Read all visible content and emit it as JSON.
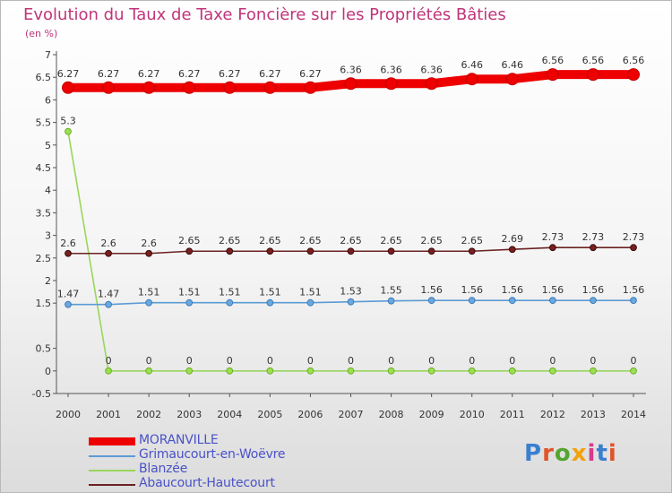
{
  "title": "Evolution du Taux de Taxe Foncière sur les Propriétés Bâties",
  "unit": "(en %)",
  "logo": "Proxiti",
  "chart_data": {
    "type": "line",
    "title": "Evolution du Taux de Taxe Foncière sur les Propriétés Bâties",
    "ylabel": "(en %)",
    "xlabel": "",
    "ylim": [
      -0.5,
      7
    ],
    "yticks": [
      -0.5,
      0,
      0.5,
      1.5,
      2,
      2.5,
      3,
      3.5,
      4,
      4.5,
      5,
      5.5,
      6,
      6.5,
      7
    ],
    "grid": false,
    "legend_position": "bottom-left",
    "categories": [
      "2000",
      "2001",
      "2002",
      "2003",
      "2004",
      "2005",
      "2006",
      "2007",
      "2008",
      "2009",
      "2010",
      "2011",
      "2012",
      "2013",
      "2014"
    ],
    "series": [
      {
        "name": "MORANVILLE",
        "color": "#ee0000",
        "values": [
          6.27,
          6.27,
          6.27,
          6.27,
          6.27,
          6.27,
          6.27,
          6.36,
          6.36,
          6.36,
          6.46,
          6.46,
          6.56,
          6.56,
          6.56
        ],
        "labels": [
          "6.27",
          "6.27",
          "6.27",
          "6.27",
          "6.27",
          "6.27",
          "6.27",
          "6.36",
          "6.36",
          "6.36",
          "6.46",
          "6.46",
          "6.56",
          "6.56",
          "6.56"
        ]
      },
      {
        "name": "Grimaucourt-en-Woëvre",
        "color": "#5b9bd5",
        "values": [
          1.47,
          1.47,
          1.51,
          1.51,
          1.51,
          1.51,
          1.51,
          1.53,
          1.55,
          1.56,
          1.56,
          1.56,
          1.56,
          1.56,
          1.56
        ],
        "labels": [
          "1.47",
          "1.47",
          "1.51",
          "1.51",
          "1.51",
          "1.51",
          "1.51",
          "1.53",
          "1.55",
          "1.56",
          "1.56",
          "1.56",
          "1.56",
          "1.56",
          "1.56"
        ]
      },
      {
        "name": "Blanzée",
        "color": "#99d65c",
        "values": [
          5.3,
          0,
          0,
          0,
          0,
          0,
          0,
          0,
          0,
          0,
          0,
          0,
          0,
          0,
          0
        ],
        "labels": [
          "5.3",
          "0",
          "0",
          "0",
          "0",
          "0",
          "0",
          "0",
          "0",
          "0",
          "0",
          "0",
          "0",
          "0",
          "0"
        ]
      },
      {
        "name": "Abaucourt-Hautecourt",
        "color": "#6b2222",
        "values": [
          2.6,
          2.6,
          2.6,
          2.65,
          2.65,
          2.65,
          2.65,
          2.65,
          2.65,
          2.65,
          2.65,
          2.69,
          2.73,
          2.73,
          2.73
        ],
        "labels": [
          "2.6",
          "2.6",
          "2.6",
          "2.65",
          "2.65",
          "2.65",
          "2.65",
          "2.65",
          "2.65",
          "2.65",
          "2.65",
          "2.69",
          "2.73",
          "2.73",
          "2.73"
        ]
      }
    ]
  }
}
